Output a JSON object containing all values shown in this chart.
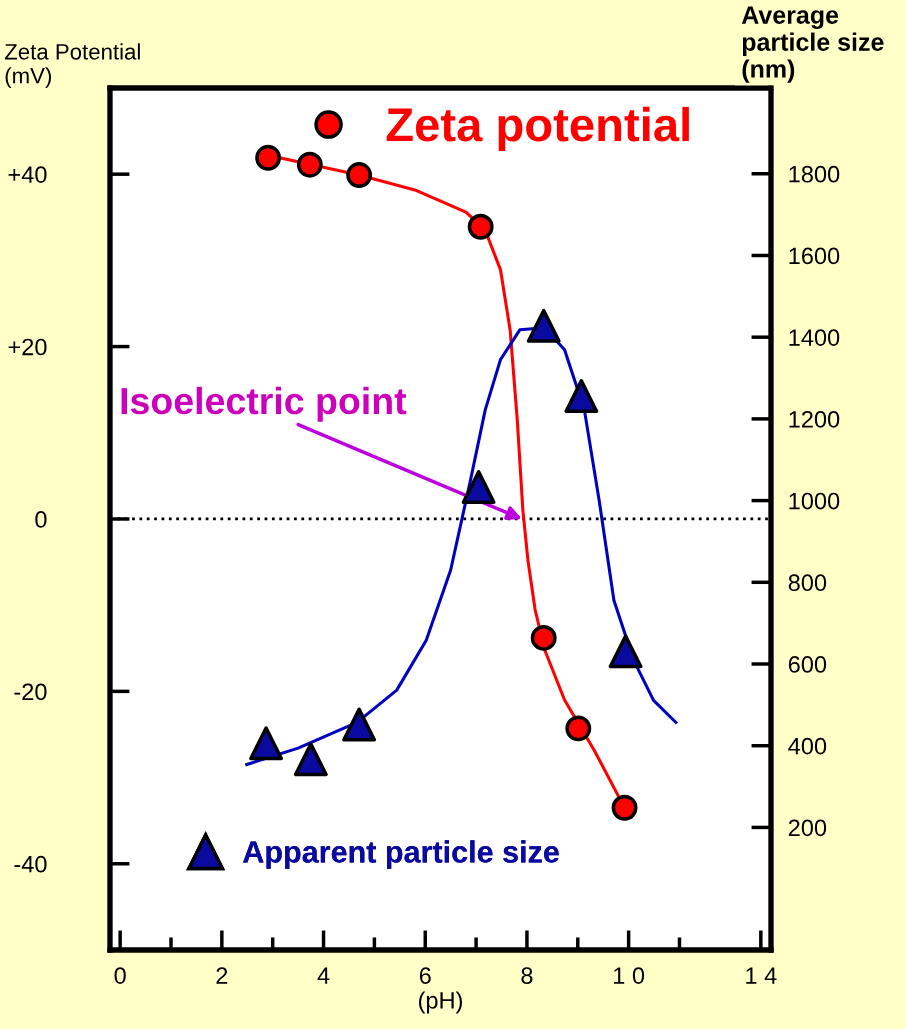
{
  "chart_data": {
    "type": "scatter",
    "xlabel": "(pH)",
    "ylabel": "Zeta Potential\n(mV)",
    "y2label": "Average\nparticle size\n(nm)",
    "xlim": [
      -0.2,
      12.8
    ],
    "xticks": [
      0,
      2,
      4,
      6,
      8,
      {
        "value": 10,
        "label": "1 0"
      },
      {
        "value": 12.6,
        "label": "1 4"
      },
      {
        "value": 1,
        "label": null
      },
      {
        "value": 3,
        "label": null
      },
      {
        "value": 5,
        "label": null
      },
      {
        "value": 7,
        "label": null
      },
      {
        "value": 9,
        "label": null
      },
      {
        "value": 11,
        "label": null
      }
    ],
    "ylim": [
      -50,
      50
    ],
    "yticks": [
      {
        "value": 40,
        "label": "+40"
      },
      {
        "value": 20,
        "label": "+20"
      },
      0,
      {
        "value": -20,
        "label": "-20"
      },
      {
        "value": -40,
        "label": "-40"
      }
    ],
    "y2lim": [
      -100,
      2010
    ],
    "y2ticks": [
      200,
      400,
      600,
      800,
      1000,
      1200,
      1400,
      1600,
      1800
    ],
    "series": [
      {
        "name": "Zeta potential",
        "marker": "circle",
        "color": "#ff0000",
        "x": [
          2.91,
          3.73,
          4.7,
          7.09,
          8.33,
          9.01,
          9.92
        ],
        "values": [
          41.9,
          41.1,
          39.9,
          33.9,
          -13.8,
          -24.3,
          -33.5
        ]
      },
      {
        "name": "Apparent particle size",
        "marker": "triangle",
        "axis": "y2",
        "color": "#0a0aa0",
        "x": [
          2.87,
          3.75,
          4.7,
          7.05,
          8.33,
          9.07,
          9.94
        ],
        "values": [
          406,
          367,
          452,
          1033,
          1428,
          1256,
          631
        ]
      },
      {
        "type": "line",
        "color": "#ff0000",
        "line_style": "solid",
        "x": [
          2.91,
          4.7,
          5.83,
          6.8,
          7.18,
          7.48,
          7.67,
          7.81,
          7.92,
          8.02,
          8.16,
          8.35,
          8.74,
          9.32,
          9.92
        ],
        "values": [
          42.2,
          39.9,
          38.1,
          35.6,
          33.5,
          28.9,
          21.9,
          11.5,
          1.0,
          -4.8,
          -10.5,
          -15.2,
          -21.0,
          -26.8,
          -33.5
        ]
      },
      {
        "type": "line",
        "color": "#0000c0",
        "line_style": "solid",
        "axis": "y2",
        "x": [
          2.49,
          3.5,
          4.66,
          5.44,
          6.02,
          6.5,
          6.89,
          7.18,
          7.48,
          7.86,
          8.35,
          8.74,
          9.13,
          9.42,
          9.71,
          10.1,
          10.49,
          10.93
        ],
        "values": [
          354,
          394,
          457,
          536,
          658,
          830,
          1050,
          1222,
          1345,
          1418,
          1423,
          1369,
          1222,
          1001,
          756,
          609,
          511,
          457
        ]
      }
    ],
    "ref_lines": [
      {
        "axis": "y",
        "value": 0,
        "color": "#000000",
        "line_style": "dotted"
      }
    ],
    "annotations": [
      {
        "text": "Isoelectric point",
        "x": 7.9,
        "y": 0
      }
    ],
    "legend": "top",
    "grid": false
  }
}
